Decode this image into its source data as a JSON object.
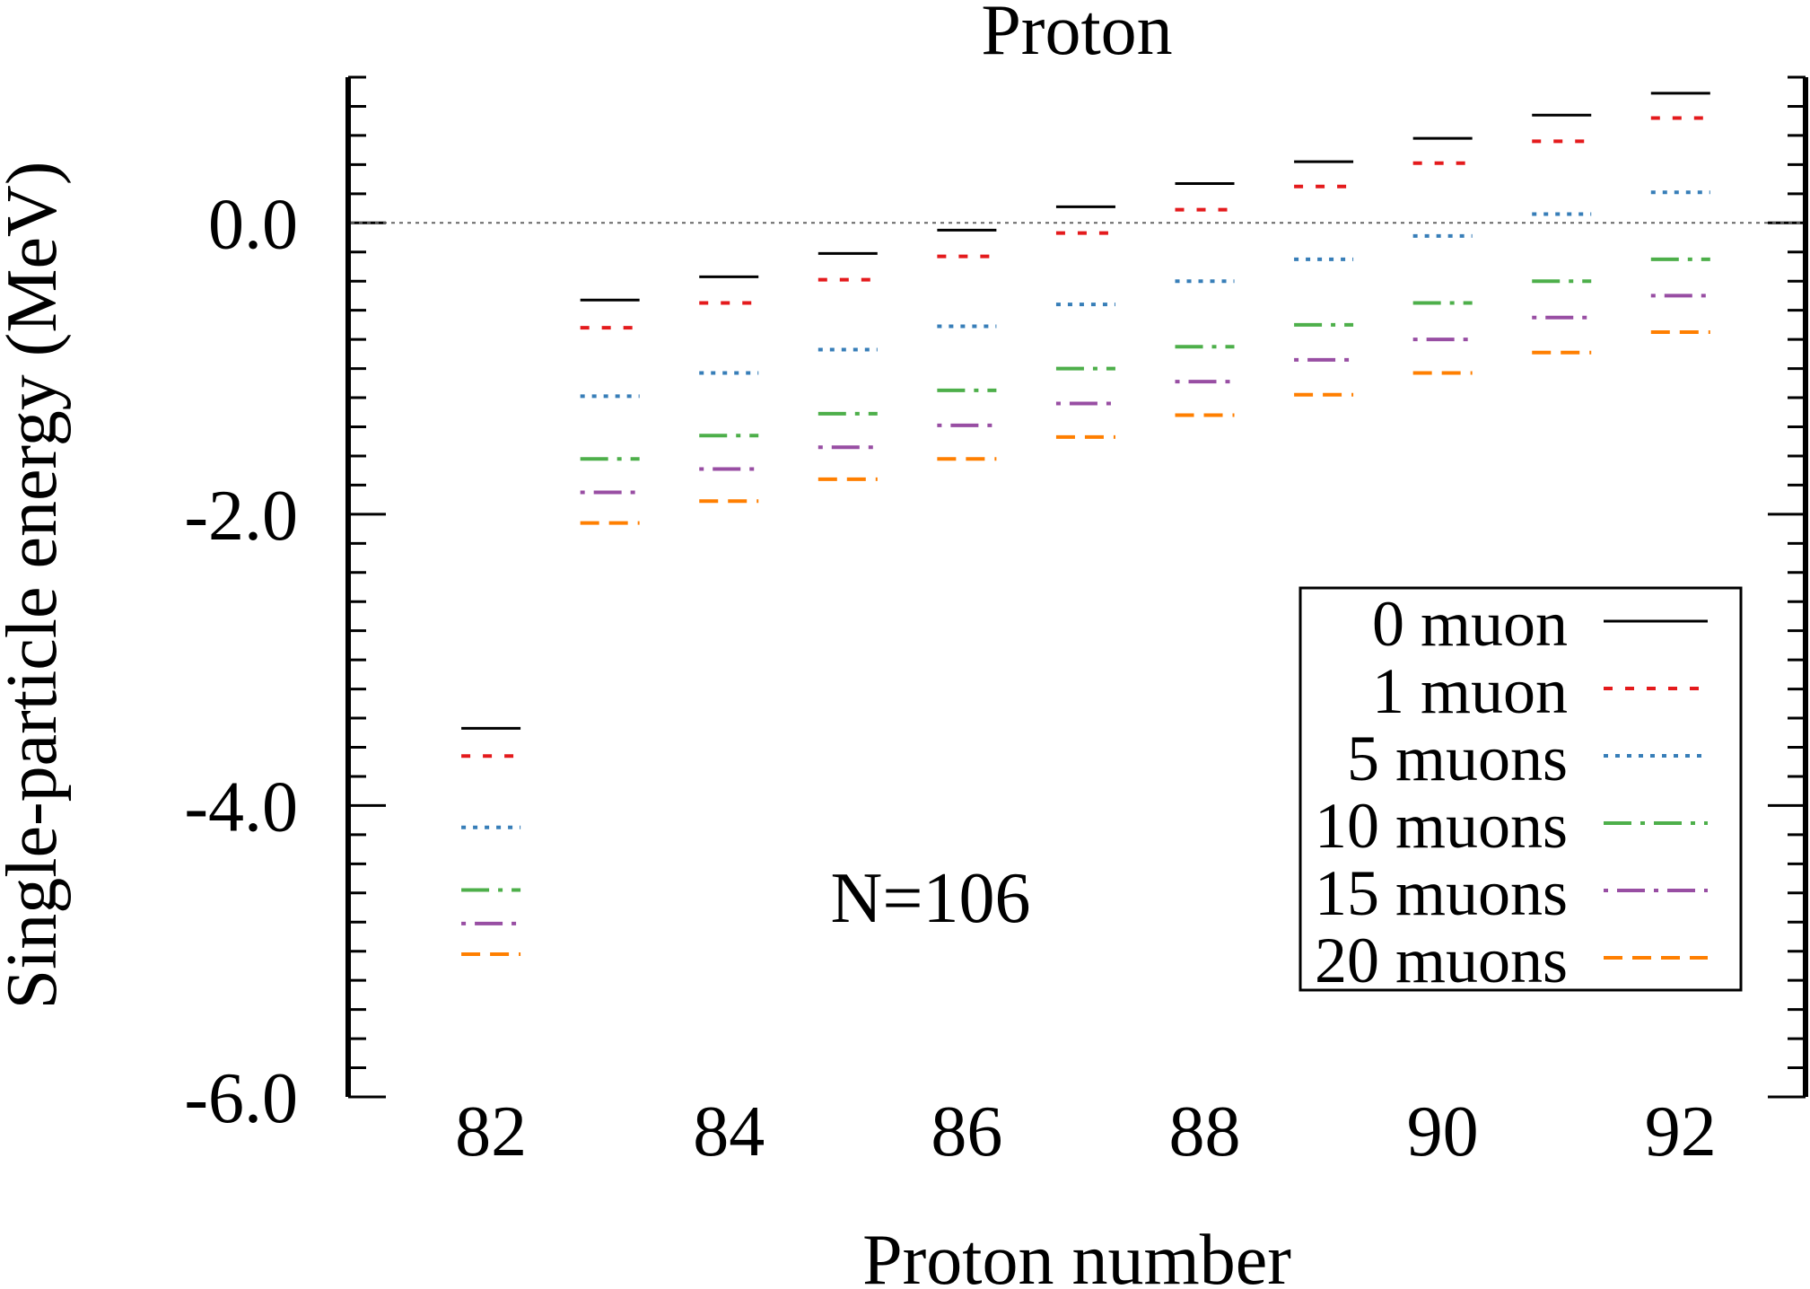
{
  "chart_data": {
    "type": "levels",
    "title": "Proton",
    "xlabel": "Proton number",
    "ylabel": "Single-particle energy (MeV)",
    "annotation": "N=106",
    "xlim": [
      80.8,
      93.05
    ],
    "ylim": [
      -6.0,
      1.0
    ],
    "x_ticks": [
      82,
      84,
      86,
      88,
      90,
      92
    ],
    "x_tick_labels": [
      "82",
      "84",
      "86",
      "88",
      "90",
      "92"
    ],
    "y_ticks": [
      0.0,
      -2.0,
      -4.0,
      -6.0
    ],
    "y_tick_labels": [
      "0.0",
      "-2.0",
      "-4.0",
      "-6.0"
    ],
    "y_minor_step": 0.2,
    "reference_line": 0.0,
    "legend_position": "lower-right",
    "x": [
      82,
      83,
      84,
      85,
      86,
      87,
      88,
      89,
      90,
      91,
      92
    ],
    "series": [
      {
        "name": "0 muon",
        "color": "#000000",
        "dash": "solid",
        "values": [
          -3.47,
          -0.53,
          -0.37,
          -0.21,
          -0.05,
          0.11,
          0.27,
          0.42,
          0.58,
          0.74,
          0.89
        ]
      },
      {
        "name": "1 muon",
        "color": "#e41a1c",
        "dash": "dashed",
        "values": [
          -3.66,
          -0.72,
          -0.55,
          -0.39,
          -0.23,
          -0.07,
          0.09,
          0.25,
          0.41,
          0.56,
          0.72
        ]
      },
      {
        "name": "5 muons",
        "color": "#377eb8",
        "dash": "dotted",
        "values": [
          -4.15,
          -1.19,
          -1.03,
          -0.87,
          -0.71,
          -0.56,
          -0.4,
          -0.25,
          -0.09,
          0.06,
          0.21
        ]
      },
      {
        "name": "10 muons",
        "color": "#4daf4a",
        "dash": "dash-dot",
        "values": [
          -4.58,
          -1.62,
          -1.46,
          -1.31,
          -1.15,
          -1.0,
          -0.85,
          -0.7,
          -0.55,
          -0.4,
          -0.25
        ]
      },
      {
        "name": "15 muons",
        "color": "#984ea3",
        "dash": "dash-dot-dot",
        "values": [
          -4.81,
          -1.85,
          -1.69,
          -1.54,
          -1.39,
          -1.24,
          -1.09,
          -0.94,
          -0.8,
          -0.65,
          -0.5
        ]
      },
      {
        "name": "20 muons",
        "color": "#ff7f00",
        "dash": "long-dashed",
        "values": [
          -5.02,
          -2.06,
          -1.91,
          -1.76,
          -1.62,
          -1.47,
          -1.32,
          -1.18,
          -1.03,
          -0.89,
          -0.75
        ]
      }
    ]
  }
}
